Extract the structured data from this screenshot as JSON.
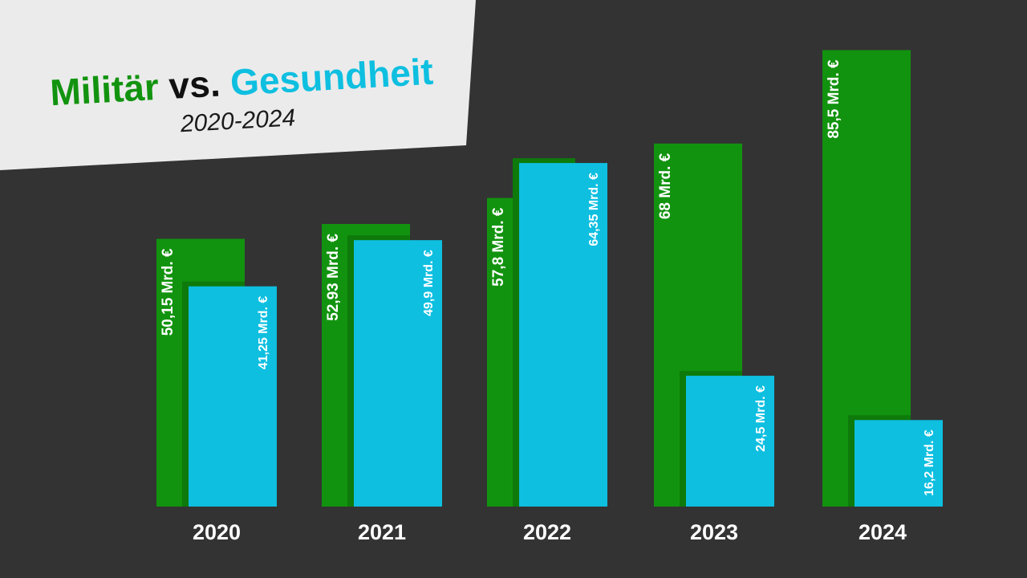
{
  "title": {
    "part1": "Militär",
    "part2": "vs.",
    "part3": "Gesundheit",
    "subtitle": "2020-2024"
  },
  "colors": {
    "background": "#333333",
    "title_panel": "#ebebeb",
    "military": "#12930f",
    "military_shadow": "#0d7a0b",
    "health": "#0ebfe0",
    "title_dark": "#111111",
    "label": "#ffffff"
  },
  "chart_data": {
    "type": "bar",
    "categories": [
      "2020",
      "2021",
      "2022",
      "2023",
      "2024"
    ],
    "series": [
      {
        "name": "Militär",
        "values": [
          50.15,
          52.93,
          57.8,
          68,
          85.5
        ],
        "labels": [
          "50,15 Mrd. €",
          "52,93 Mrd. €",
          "57,8 Mrd. €",
          "68 Mrd. €",
          "85,5 Mrd. €"
        ]
      },
      {
        "name": "Gesundheit",
        "values": [
          41.25,
          49.9,
          64.35,
          24.5,
          16.2
        ],
        "labels": [
          "41,25 Mrd. €",
          "49,9 Mrd. €",
          "64,35 Mrd. €",
          "24,5 Mrd. €",
          "16,2 Mrd. €"
        ]
      }
    ],
    "title": "Militär vs. Gesundheit",
    "subtitle": "2020-2024",
    "xlabel": "",
    "ylabel": "",
    "ylim": [
      0,
      90
    ],
    "grid": false,
    "legend": "none"
  }
}
